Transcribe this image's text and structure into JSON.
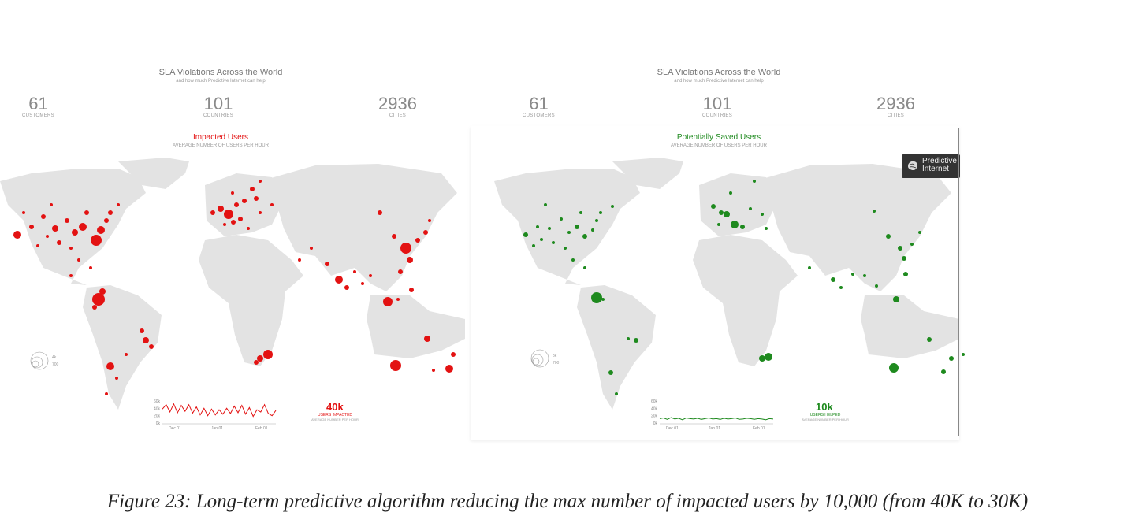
{
  "colors": {
    "impacted": "#e31212",
    "saved": "#1e8a1e",
    "land": "#e3e3e3",
    "text": "#8a8a8a"
  },
  "left_panel": {
    "title": "SLA Violations Across the World",
    "subtitle": "and how much Predictive Internet can help",
    "stats": [
      {
        "value": "61",
        "label": "CUSTOMERS"
      },
      {
        "value": "101",
        "label": "COUNTRIES"
      },
      {
        "value": "2936",
        "label": "CITIES"
      }
    ],
    "metric_title": "Impacted Users",
    "metric_subtitle": "AVERAGE NUMBER OF USERS PER HOUR",
    "legend": [
      "4k",
      "700"
    ],
    "big_number": "40k",
    "big_label": "USERS IMPACTED",
    "big_sub": "AVERAGE NUMBER PER HOUR"
  },
  "right_panel": {
    "title": "SLA Violations Across the World",
    "subtitle": "and how much Predictive Internet can help",
    "stats": [
      {
        "value": "61",
        "label": "CUSTOMERS"
      },
      {
        "value": "101",
        "label": "COUNTRIES"
      },
      {
        "value": "2936",
        "label": "CITIES"
      }
    ],
    "metric_title": "Potentially Saved Users",
    "metric_subtitle": "AVERAGE NUMBER OF USERS PER HOUR",
    "legend": [
      "3k",
      "700"
    ],
    "big_number": "10k",
    "big_label": "USERS HELPED",
    "big_sub": "AVERAGE NUMBER PER HOUR",
    "badge": [
      "Predictive",
      "Internet"
    ]
  },
  "chart_data": [
    {
      "type": "line",
      "series": [
        {
          "values": [
            38,
            50,
            30,
            52,
            28,
            48,
            32,
            50,
            27,
            44,
            22,
            40,
            20,
            38,
            22,
            36,
            24,
            40,
            26,
            46,
            28,
            48,
            24,
            42,
            18,
            36,
            30,
            50,
            26,
            20,
            34
          ]
        }
      ],
      "x_ticks": [
        "Dec 01",
        "Jan 01",
        "Feb 01"
      ],
      "y_ticks": [
        "60k",
        "40k",
        "20k",
        "0k"
      ],
      "ylim": [
        0,
        60
      ]
    },
    {
      "type": "line",
      "series": [
        {
          "values": [
            12,
            14,
            10,
            15,
            11,
            13,
            9,
            14,
            12,
            11,
            13,
            10,
            12,
            14,
            11,
            12,
            10,
            13,
            11,
            12,
            14,
            10,
            11,
            13,
            12,
            10,
            12,
            11,
            9,
            12,
            11
          ]
        }
      ],
      "x_ticks": [
        "Dec 01",
        "Jan 01",
        "Feb 01"
      ],
      "y_ticks": [
        "60k",
        "40k",
        "20k",
        "0k"
      ],
      "ylim": [
        0,
        60
      ]
    }
  ],
  "caption": "Figure 23: Long-term predictive algorithm reducing the max number of impacted users by 10,000 (from 40K to 30K)"
}
